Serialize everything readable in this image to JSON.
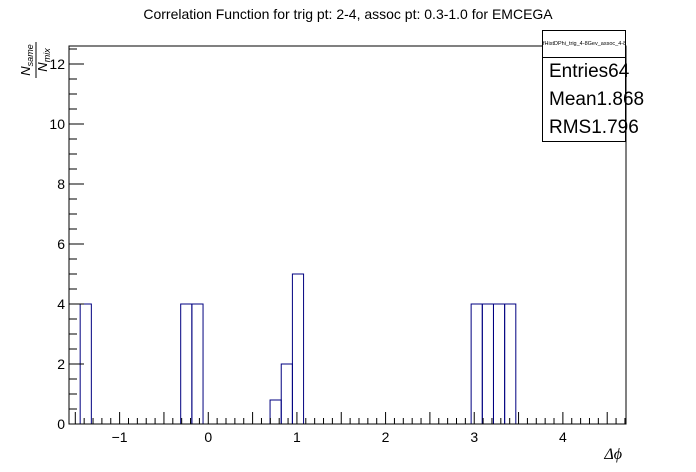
{
  "chart_data": {
    "type": "histogram",
    "title": "Correlation Function for trig pt: 2-4, assoc pt: 0.3-1.0 for EMCEGA",
    "xlabel": "Δϕ",
    "ylabel_num": "N",
    "ylabel_num_sub": "same",
    "ylabel_den": "N",
    "ylabel_den_sub": "mix",
    "xlim": [
      -1.571,
      4.712
    ],
    "ylim": [
      0,
      12.6
    ],
    "bin_width": 0.126,
    "bin_start": -1.571,
    "values": [
      0,
      4,
      0,
      0,
      0,
      0,
      0,
      0,
      0,
      0,
      4,
      4,
      0,
      0,
      0,
      0,
      0,
      0,
      0.8,
      2,
      5,
      0,
      0,
      0,
      0,
      0,
      0,
      0,
      0,
      0,
      0,
      0,
      0,
      0,
      0,
      0,
      4,
      4,
      4,
      4,
      0,
      0,
      0,
      0,
      0,
      0,
      0,
      0,
      0,
      0
    ],
    "x_ticks": [
      -1,
      0,
      1,
      2,
      3,
      4
    ],
    "x_tick_labels": [
      "−1",
      "0",
      "1",
      "2",
      "3",
      "4"
    ],
    "y_ticks": [
      0,
      2,
      4,
      6,
      8,
      10,
      12
    ],
    "y_tick_labels": [
      "0",
      "2",
      "4",
      "6",
      "8",
      "10",
      "12"
    ],
    "line_color": "#000080"
  },
  "stats": {
    "name": "fHistDPhi_trig_4-8Gev_assoc_4-8Gev_EMCEGA",
    "rows": [
      {
        "label": "Entries",
        "value": "64"
      },
      {
        "label": "Mean",
        "value": "1.868"
      },
      {
        "label": "RMS",
        "value": "1.796"
      }
    ]
  }
}
